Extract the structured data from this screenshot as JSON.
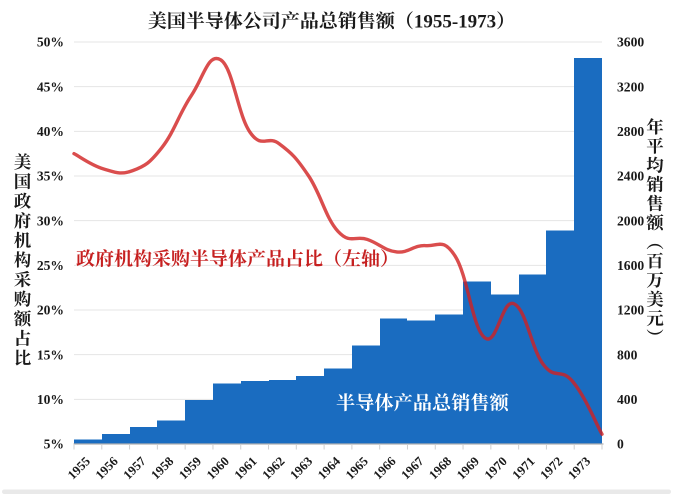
{
  "title": "美国半导体公司产品总销售额（1955-1973）",
  "left_axis": {
    "title": "美国政府机构采购额占比",
    "unit": "%",
    "ticks": [
      "5%",
      "10%",
      "15%",
      "20%",
      "25%",
      "30%",
      "35%",
      "40%",
      "45%",
      "50%"
    ],
    "min": 5,
    "max": 50
  },
  "right_axis": {
    "title": "年平均销售额（百万美元）",
    "unit": "百万美元",
    "ticks": [
      "0",
      "400",
      "800",
      "1200",
      "1600",
      "2000",
      "2400",
      "2800",
      "3200",
      "3600"
    ],
    "min": 0,
    "max": 3600
  },
  "x_axis": {
    "labels": [
      "1955",
      "1956",
      "1957",
      "1958",
      "1959",
      "1960",
      "1961",
      "1962",
      "1963",
      "1964",
      "1965",
      "1966",
      "1967",
      "1968",
      "1969",
      "1970",
      "1971",
      "1972",
      "1973"
    ]
  },
  "annotations": {
    "line_label": "政府机构采购半导体产品占比（左轴）",
    "bar_label": "半导体产品总销售额"
  },
  "colors": {
    "bar": "#1a6cc0",
    "line": "#d12020",
    "line_label": "#c62020",
    "bar_label": "#ffffff",
    "grid": "#e5e5e5",
    "axis_line": "#b0b0b0",
    "tick": "#cfcfcf",
    "text": "#1a1a1a",
    "background": "#ffffff",
    "bottom_strip": "#e9e9e9"
  },
  "chart_data": {
    "type": "combo",
    "categories": [
      1955,
      1956,
      1957,
      1958,
      1959,
      1960,
      1961,
      1962,
      1963,
      1964,
      1965,
      1966,
      1967,
      1968,
      1969,
      1970,
      1971,
      1972,
      1973
    ],
    "series": [
      {
        "name": "半导体产品总销售额",
        "type": "bar",
        "axis": "right",
        "unit": "百万美元",
        "values": [
          40,
          90,
          151,
          210,
          396,
          542,
          565,
          575,
          610,
          676,
          884,
          1123,
          1107,
          1159,
          1457,
          1337,
          1519,
          1912,
          3458
        ]
      },
      {
        "name": "政府机构采购半导体产品占比",
        "type": "line",
        "axis": "left",
        "unit": "%",
        "values": [
          37.5,
          35.8,
          35.6,
          38.2,
          44.0,
          48.0,
          39.9,
          38.6,
          35.0,
          28.8,
          27.9,
          26.5,
          27.2,
          26.0,
          16.9,
          20.7,
          13.9,
          12.0,
          6.1
        ]
      }
    ],
    "title": "美国半导体公司产品总销售额（1955-1973）",
    "xlabel": "",
    "ylabel_left": "美国政府机构采购额占比",
    "ylabel_right": "年平均销售额（百万美元）",
    "left_ylim": [
      5,
      50
    ],
    "right_ylim": [
      0,
      3600
    ],
    "grid": "horizontal",
    "legend": "none"
  }
}
